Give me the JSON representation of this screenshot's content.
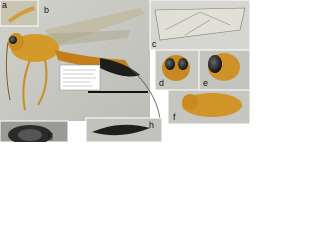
{
  "panels": [
    {
      "letter": "a"
    },
    {
      "letter": "b"
    },
    {
      "letter": "c"
    },
    {
      "letter": "d"
    },
    {
      "letter": "e"
    },
    {
      "letter": "f"
    },
    {
      "letter": "g"
    },
    {
      "letter": "h"
    }
  ]
}
